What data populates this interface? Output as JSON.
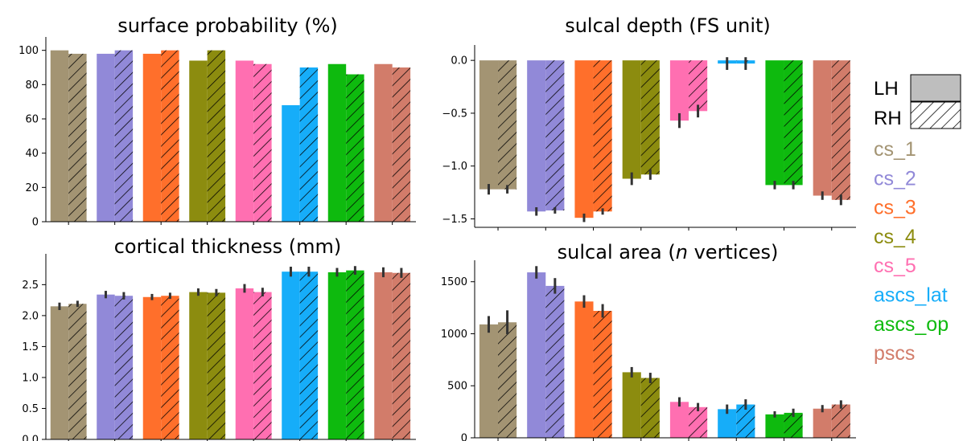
{
  "chart_data": [
    {
      "type": "bar",
      "title": "surface probability (%)",
      "categories": [
        "cs_1",
        "cs_2",
        "cs_3",
        "cs_4",
        "cs_5",
        "ascs_lat",
        "ascs_op",
        "pscs"
      ],
      "series": [
        {
          "name": "LH",
          "values": [
            100,
            98,
            98,
            94,
            94,
            68,
            92,
            92
          ]
        },
        {
          "name": "RH",
          "values": [
            98,
            100,
            100,
            100,
            92,
            90,
            86,
            90
          ]
        }
      ],
      "ylim": [
        0,
        105
      ],
      "yticks": [
        0,
        20,
        40,
        60,
        80,
        100
      ],
      "ytick_labels": [
        "0",
        "20",
        "40",
        "60",
        "80",
        "100"
      ]
    },
    {
      "type": "bar",
      "title": "sulcal depth (FS unit)",
      "categories": [
        "cs_1",
        "cs_2",
        "cs_3",
        "cs_4",
        "cs_5",
        "ascs_lat",
        "ascs_op",
        "pscs"
      ],
      "series": [
        {
          "name": "LH",
          "values": [
            -1.22,
            -1.43,
            -1.49,
            -1.12,
            -0.57,
            -0.03,
            -1.18,
            -1.28
          ],
          "errors": [
            0.05,
            0.04,
            0.04,
            0.06,
            0.07,
            0.06,
            0.04,
            0.04
          ]
        },
        {
          "name": "RH",
          "values": [
            -1.22,
            -1.42,
            -1.43,
            -1.08,
            -0.48,
            -0.03,
            -1.18,
            -1.32
          ],
          "errors": [
            0.04,
            0.03,
            0.03,
            0.05,
            0.06,
            0.06,
            0.04,
            0.05
          ]
        }
      ],
      "ylim": [
        -1.58,
        0.1
      ],
      "yticks": [
        0.0,
        -0.5,
        -1.0,
        -1.5
      ],
      "ytick_labels": [
        "0.0",
        "−0.5",
        "−1.0",
        "−1.5"
      ]
    },
    {
      "type": "bar",
      "title": "cortical thickness (mm)",
      "categories": [
        "cs_1",
        "cs_2",
        "cs_3",
        "cs_4",
        "cs_5",
        "ascs_lat",
        "ascs_op",
        "pscs"
      ],
      "series": [
        {
          "name": "LH",
          "values": [
            2.15,
            2.34,
            2.3,
            2.38,
            2.44,
            2.71,
            2.7,
            2.7
          ],
          "errors": [
            0.06,
            0.06,
            0.05,
            0.06,
            0.07,
            0.08,
            0.07,
            0.08
          ]
        },
        {
          "name": "RH",
          "values": [
            2.19,
            2.32,
            2.32,
            2.37,
            2.38,
            2.71,
            2.73,
            2.69
          ],
          "errors": [
            0.05,
            0.06,
            0.05,
            0.06,
            0.07,
            0.08,
            0.07,
            0.08
          ]
        }
      ],
      "ylim": [
        0,
        2.92
      ],
      "yticks": [
        0.0,
        0.5,
        1.0,
        1.5,
        2.0,
        2.5
      ],
      "ytick_labels": [
        "0.0",
        "0.5",
        "1.0",
        "1.5",
        "2.0",
        "2.5"
      ]
    },
    {
      "type": "bar",
      "title_parts": [
        "sulcal area (",
        "n",
        " vertices)"
      ],
      "categories": [
        "cs_1",
        "cs_2",
        "cs_3",
        "cs_4",
        "cs_5",
        "ascs_lat",
        "ascs_op",
        "pscs"
      ],
      "series": [
        {
          "name": "LH",
          "values": [
            1090,
            1590,
            1310,
            630,
            345,
            275,
            225,
            280
          ],
          "errors": [
            80,
            60,
            60,
            50,
            45,
            45,
            30,
            35
          ]
        },
        {
          "name": "RH",
          "values": [
            1110,
            1460,
            1220,
            575,
            295,
            320,
            240,
            320
          ],
          "errors": [
            115,
            75,
            65,
            50,
            40,
            50,
            40,
            40
          ]
        }
      ],
      "ylim": [
        0,
        1660
      ],
      "yticks": [
        0,
        500,
        1000,
        1500
      ],
      "ytick_labels": [
        "0",
        "500",
        "1000",
        "1500"
      ]
    }
  ],
  "legend": {
    "hemispheres": [
      {
        "label": "LH",
        "style": "solid"
      },
      {
        "label": "RH",
        "style": "hatched"
      }
    ],
    "categories": [
      {
        "label": "cs_1",
        "color": "#A39473"
      },
      {
        "label": "cs_2",
        "color": "#9189D8"
      },
      {
        "label": "cs_3",
        "color": "#FF6F2B"
      },
      {
        "label": "cs_4",
        "color": "#8C8C0F"
      },
      {
        "label": "cs_5",
        "color": "#FF6FB1"
      },
      {
        "label": "ascs_lat",
        "color": "#16ADF9"
      },
      {
        "label": "ascs_op",
        "color": "#0EBA0E"
      },
      {
        "label": "pscs",
        "color": "#D27C6A"
      }
    ]
  }
}
